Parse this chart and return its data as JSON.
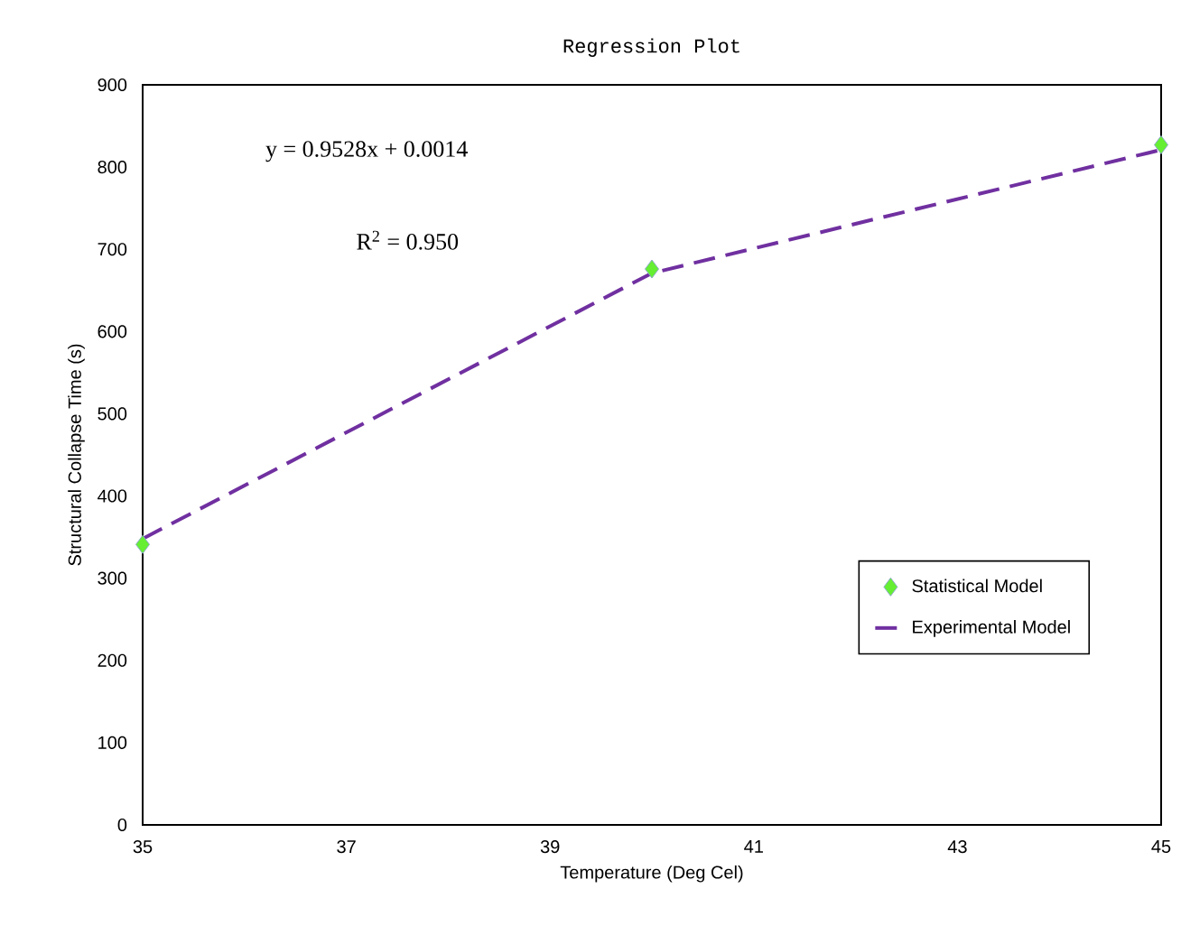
{
  "chart_data": {
    "type": "line",
    "title": "Regression Plot",
    "xlabel": "Temperature (Deg Cel)",
    "ylabel": "Structural Collapse Time (s)",
    "annotations": [
      "y = 0.9528x + 0.0014",
      "R$^{2}$ = 0.950"
    ],
    "series": [
      {
        "name": "Statistical Model",
        "type": "scatter",
        "marker": "diamond",
        "color": "#66ee33",
        "x": [
          35,
          40,
          45
        ],
        "values": [
          341,
          676,
          827
        ]
      },
      {
        "name": "Experimental Model",
        "marker": "none",
        "line_style": "dashed",
        "color": "#7030a0",
        "x": [
          35,
          40,
          45
        ],
        "values": [
          348,
          671,
          821
        ]
      }
    ],
    "xlim": [
      35,
      45
    ],
    "xticks": [
      35,
      37,
      39,
      41,
      43,
      45
    ],
    "ylim": [
      0,
      900
    ],
    "yticks": [
      0,
      100,
      200,
      300,
      400,
      500,
      600,
      700,
      800,
      900
    ],
    "grid": false,
    "legend": "right"
  }
}
